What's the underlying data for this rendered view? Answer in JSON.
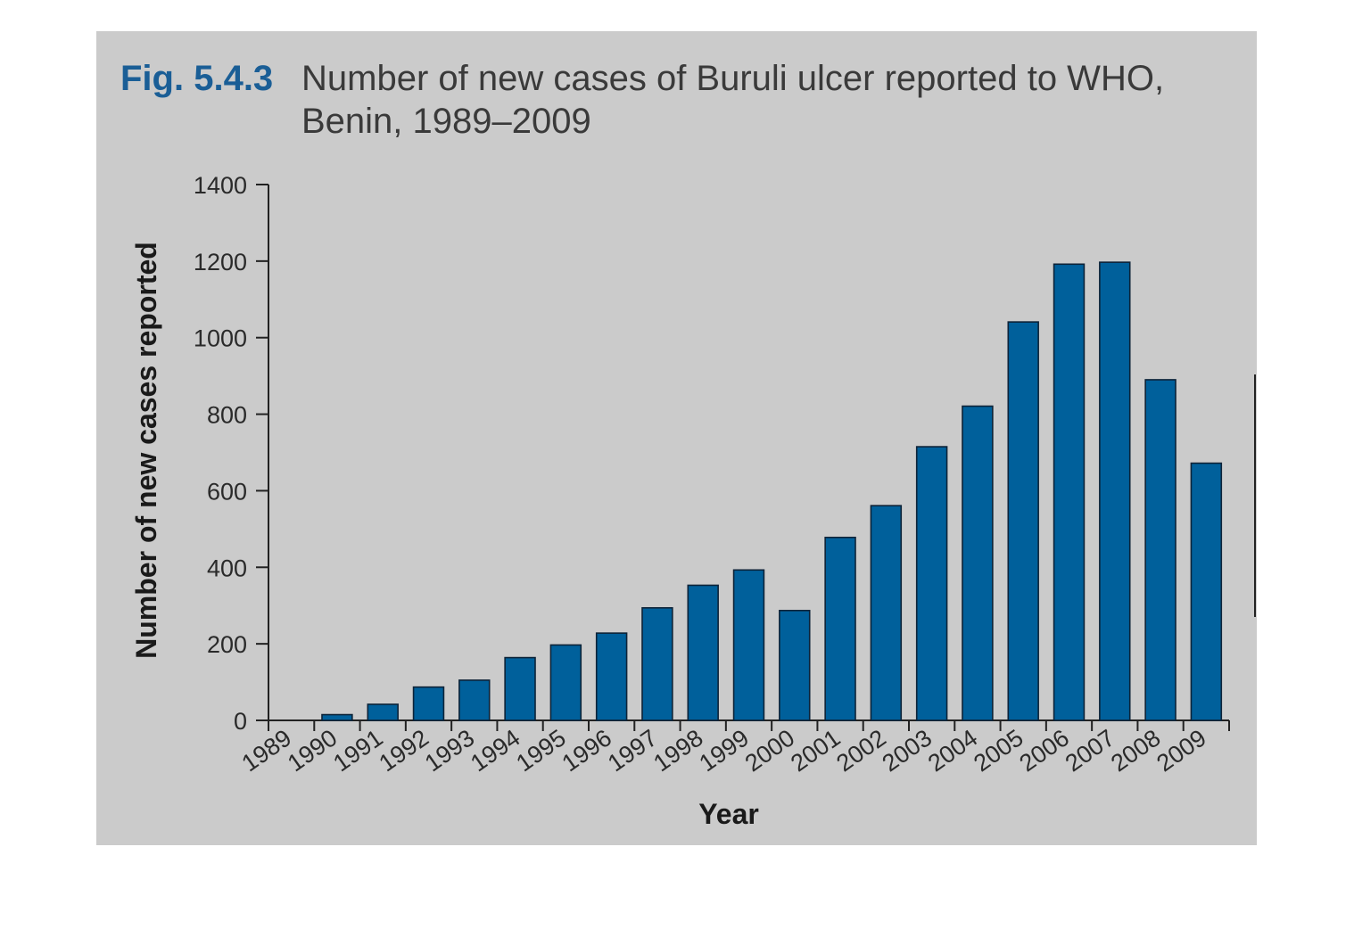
{
  "figure": {
    "label": "Fig. 5.4.3",
    "title_line1": "Number of new cases of Buruli ulcer reported to WHO,",
    "title_line2": "Benin, 1989–2009"
  },
  "colors": {
    "panel_background": "#cbcbcb",
    "bar_fill": "#00609b",
    "bar_stroke": "#0d2338",
    "figure_label": "#1a5e96",
    "axis": "#222222"
  },
  "chart_data": {
    "type": "bar",
    "title": "Number of new cases of Buruli ulcer reported to WHO, Benin, 1989–2009",
    "xlabel": "Year",
    "ylabel": "Number of new cases reported",
    "ylim": [
      0,
      1400
    ],
    "yticks": [
      0,
      200,
      400,
      600,
      800,
      1000,
      1200,
      1400
    ],
    "grid": false,
    "categories": [
      "1989",
      "1990",
      "1991",
      "1992",
      "1993",
      "1994",
      "1995",
      "1996",
      "1997",
      "1998",
      "1999",
      "2000",
      "2001",
      "2002",
      "2003",
      "2004",
      "2005",
      "2006",
      "2007",
      "2008",
      "2009"
    ],
    "values": [
      0,
      15,
      42,
      87,
      105,
      164,
      197,
      228,
      294,
      353,
      393,
      287,
      478,
      561,
      715,
      821,
      1041,
      1192,
      1197,
      890,
      672
    ]
  }
}
